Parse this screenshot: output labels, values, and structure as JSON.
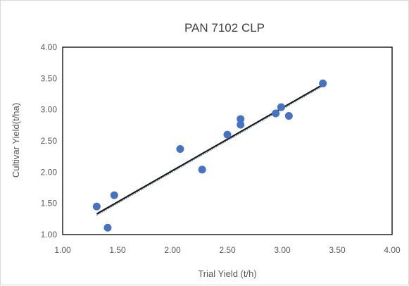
{
  "chart_data": {
    "type": "scatter",
    "title": "PAN 7102 CLP",
    "xlabel": "Trial Yield (t/h)",
    "ylabel": "Cultivar Yield(t/ha)",
    "xlim": [
      1.0,
      4.0
    ],
    "ylim": [
      1.0,
      4.0
    ],
    "xticks": [
      "1.00",
      "1.50",
      "2.00",
      "2.50",
      "3.00",
      "3.50",
      "4.00"
    ],
    "yticks": [
      "1.00",
      "1.50",
      "2.00",
      "2.50",
      "3.00",
      "3.50",
      "4.00"
    ],
    "grid": false,
    "legend": "none",
    "colors": {
      "points": "#4472c4",
      "fit": "#1a1a1a"
    },
    "series": [
      {
        "values": [
          {
            "x": 1.31,
            "y": 1.45
          },
          {
            "x": 1.41,
            "y": 1.11
          },
          {
            "x": 1.47,
            "y": 1.63
          },
          {
            "x": 2.07,
            "y": 2.37
          },
          {
            "x": 2.27,
            "y": 2.04
          },
          {
            "x": 2.5,
            "y": 2.6
          },
          {
            "x": 2.62,
            "y": 2.85
          },
          {
            "x": 2.62,
            "y": 2.76
          },
          {
            "x": 2.94,
            "y": 2.94
          },
          {
            "x": 2.99,
            "y": 3.04
          },
          {
            "x": 3.06,
            "y": 2.9
          },
          {
            "x": 3.37,
            "y": 3.42
          }
        ]
      }
    ],
    "trendline": {
      "type": "linear",
      "x": [
        1.31,
        3.37
      ],
      "y": [
        1.33,
        3.4
      ]
    }
  }
}
